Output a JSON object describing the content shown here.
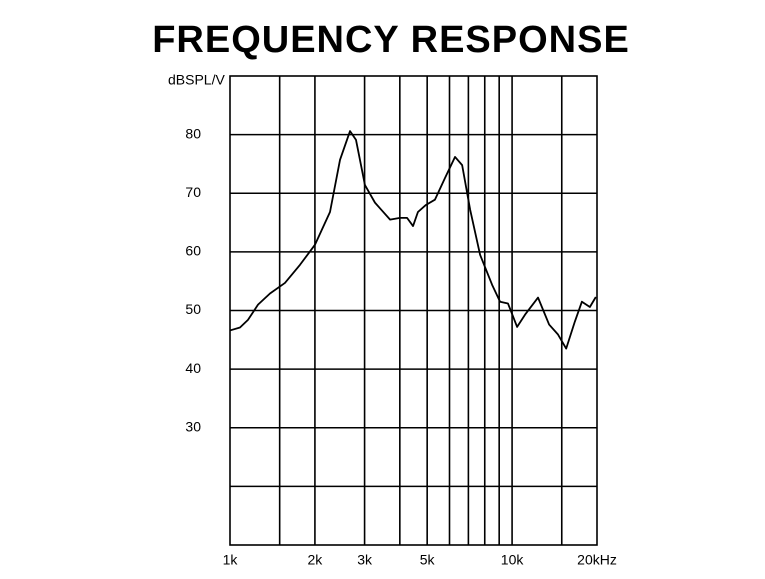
{
  "chart_data": {
    "type": "line",
    "title": "FREQUENCY RESPONSE",
    "y_label": "dBSPL/V",
    "log_x": true,
    "grid": true,
    "xlim": [
      1000,
      20000
    ],
    "ylim": [
      10,
      90
    ],
    "xticks": [
      {
        "value": 1000,
        "label": "1k"
      },
      {
        "value": 2000,
        "label": "2k"
      },
      {
        "value": 3000,
        "label": "3k"
      },
      {
        "value": 5000,
        "label": "5k"
      },
      {
        "value": 10000,
        "label": "10k"
      },
      {
        "value": 20000,
        "label": "20kHz"
      }
    ],
    "xgrid": [
      1500,
      2000,
      3000,
      4000,
      5000,
      6000,
      7000,
      8000,
      9000,
      10000,
      15000
    ],
    "yticks": [
      30,
      40,
      50,
      60,
      70,
      80
    ],
    "ygrid": [
      20,
      30,
      40,
      50,
      60,
      70,
      80
    ],
    "x": [
      1000,
      1085,
      1158,
      1257,
      1386,
      1566,
      1771,
      2000,
      2262,
      2455,
      2664,
      2797,
      3009,
      3265,
      3694,
      4006,
      4243,
      4455,
      4637,
      4948,
      5326,
      5783,
      6278,
      6652,
      7101,
      7702,
      8493,
      9067,
      9670,
      10420,
      11120,
      12360,
      13530,
      14550,
      15550,
      16690,
      17680,
      18870,
      19810
    ],
    "series": [
      {
        "color": "#000000",
        "values": [
          46.6,
          47.1,
          48.4,
          51.0,
          52.9,
          54.7,
          57.8,
          61.2,
          66.8,
          75.7,
          80.6,
          79.1,
          71.4,
          68.4,
          65.5,
          65.8,
          65.8,
          64.4,
          66.8,
          68.0,
          68.9,
          72.6,
          76.2,
          74.8,
          67.2,
          59.5,
          54.4,
          51.5,
          51.2,
          47.2,
          49.3,
          52.2,
          47.6,
          45.9,
          43.5,
          48.1,
          51.5,
          50.6,
          52.3
        ]
      }
    ]
  }
}
